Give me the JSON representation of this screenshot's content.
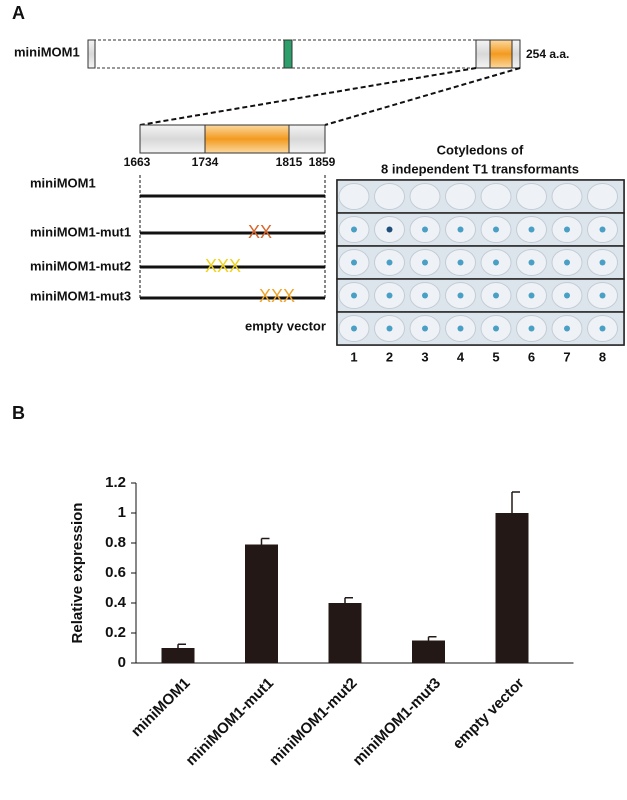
{
  "panel_a": {
    "label": "A",
    "protein": {
      "name": "miniMOM1",
      "length": "254 a.a."
    },
    "zoom_positions": [
      1663,
      1734,
      1815,
      1859
    ],
    "constructs": [
      "miniMOM1",
      "miniMOM1-mut1",
      "miniMOM1-mut2",
      "miniMOM1-mut3",
      "empty vector"
    ],
    "image_title": [
      "Cotyledons of",
      "8 independent T1 transformants"
    ],
    "lanes": [
      1,
      2,
      3,
      4,
      5,
      6,
      7,
      8
    ]
  },
  "chart_data": {
    "type": "bar",
    "label": "B",
    "ylabel": "Relative expression",
    "categories": [
      "miniMOM1",
      "miniMOM1-mut1",
      "miniMOM1-mut2",
      "miniMOM1-mut3",
      "empty vector"
    ],
    "values": [
      0.1,
      0.79,
      0.4,
      0.15,
      1.0
    ],
    "errors": [
      0.025,
      0.04,
      0.035,
      0.025,
      0.14
    ],
    "color": "#231815",
    "ylim": [
      0,
      1.2
    ],
    "yticks": [
      0,
      0.2,
      0.4,
      0.6,
      0.8,
      1,
      1.2
    ]
  }
}
